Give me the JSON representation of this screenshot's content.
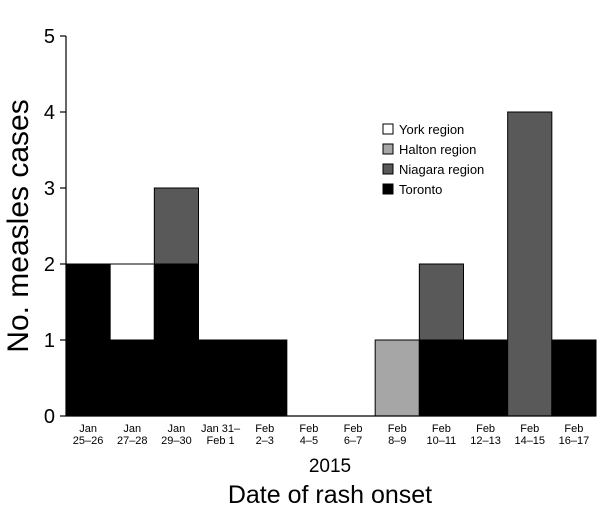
{
  "chart_data": {
    "type": "bar",
    "stacked": true,
    "categories": [
      [
        "Jan",
        "25–26"
      ],
      [
        "Jan",
        "27–28"
      ],
      [
        "Jan",
        "29–30"
      ],
      [
        "Jan 31–",
        "Feb 1"
      ],
      [
        "Feb",
        "2–3"
      ],
      [
        "Feb",
        "4–5"
      ],
      [
        "Feb",
        "6–7"
      ],
      [
        "Feb",
        "8–9"
      ],
      [
        "Feb",
        "10–11"
      ],
      [
        "Feb",
        "12–13"
      ],
      [
        "Feb",
        "14–15"
      ],
      [
        "Feb",
        "16–17"
      ]
    ],
    "series": [
      {
        "name": "Toronto",
        "color": "#000000",
        "values": [
          2,
          1,
          2,
          1,
          1,
          0,
          0,
          0,
          1,
          1,
          0,
          1
        ]
      },
      {
        "name": "York region",
        "color": "#ffffff",
        "values": [
          0,
          1,
          0,
          0,
          0,
          0,
          0,
          0,
          0,
          0,
          0,
          0
        ]
      },
      {
        "name": "Halton region",
        "color": "#a6a6a6",
        "values": [
          0,
          0,
          0,
          0,
          0,
          0,
          0,
          1,
          0,
          0,
          0,
          0
        ]
      },
      {
        "name": "Niagara region",
        "color": "#595959",
        "values": [
          0,
          0,
          1,
          0,
          0,
          0,
          0,
          0,
          1,
          0,
          4,
          0
        ]
      }
    ],
    "legend_order": [
      "York region",
      "Halton region",
      "Niagara region",
      "Toronto"
    ],
    "legend_position": "right",
    "ylabel": "No. measles cases",
    "xlabel_year": "2015",
    "xlabel": "Date of rash onset",
    "ylim": [
      0,
      5
    ],
    "yticks": [
      0,
      1,
      2,
      3,
      4,
      5
    ],
    "grid": false
  }
}
